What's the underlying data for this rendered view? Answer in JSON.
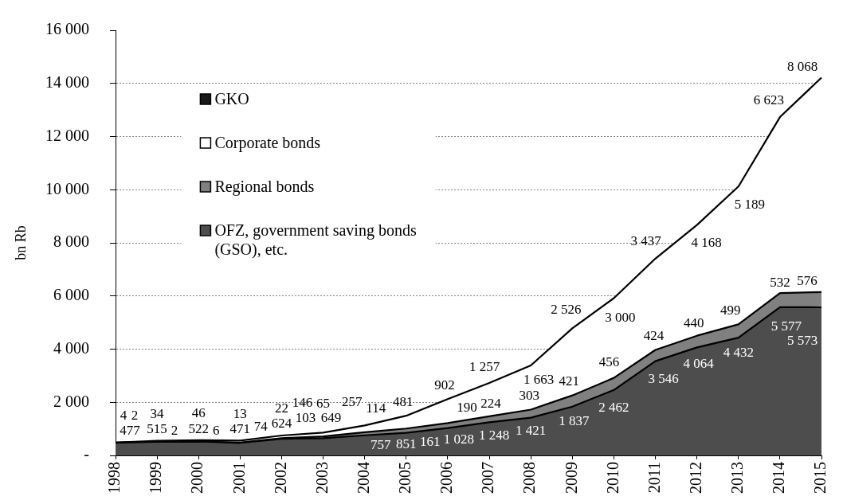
{
  "chart_data": {
    "type": "area",
    "stacked": true,
    "ylabel": "bn Rb",
    "categories": [
      "1998",
      "1999",
      "2000",
      "2001",
      "2002",
      "2003",
      "2004",
      "2005",
      "2006",
      "2007",
      "2008",
      "2009",
      "2010",
      "2011",
      "2012",
      "2013",
      "2014",
      "2015"
    ],
    "ylim": [
      0,
      16000
    ],
    "yticks": [
      {
        "value": 0,
        "label": "-"
      },
      {
        "value": 2000,
        "label": "2 000"
      },
      {
        "value": 4000,
        "label": "4 000"
      },
      {
        "value": 6000,
        "label": "6 000"
      },
      {
        "value": 8000,
        "label": "8 000"
      },
      {
        "value": 10000,
        "label": "10 000"
      },
      {
        "value": 12000,
        "label": "12 000"
      },
      {
        "value": 14000,
        "label": "14 000"
      },
      {
        "value": 16000,
        "label": "16 000"
      }
    ],
    "grid": "y",
    "legend": "top left",
    "series": [
      {
        "name": "OFZ, government saving bonds (GSO), etc.",
        "color": "#4d4d4d",
        "values": [
          477,
          515,
          522,
          471,
          624,
          649,
          757,
          851,
          1028,
          1248,
          1421,
          1837,
          2462,
          3546,
          4064,
          4432,
          5577,
          5573
        ],
        "value_labels": [
          "477",
          "515",
          "522",
          "471",
          "624",
          "649",
          "757",
          "851",
          "1 028",
          "1 248",
          "1 421",
          "1 837",
          "2 462",
          "3 546",
          "4 064",
          "4 432",
          "5 577",
          "5 573"
        ]
      },
      {
        "name": "Regional bonds",
        "color": "#808080",
        "values": [
          4,
          2,
          6,
          13,
          22,
          65,
          114,
          161,
          190,
          224,
          303,
          421,
          456,
          424,
          440,
          499,
          532,
          576
        ],
        "value_labels": [
          "4",
          "2",
          "6",
          "13",
          "22",
          "65",
          "114",
          "161",
          "190",
          "224",
          "303",
          "421",
          "456",
          "424",
          "440",
          "499",
          "532",
          "576"
        ]
      },
      {
        "name": "Corporate bonds",
        "color": "#ffffff",
        "values": [
          2,
          34,
          46,
          74,
          103,
          146,
          257,
          481,
          902,
          1257,
          1663,
          2526,
          3000,
          3437,
          4168,
          5189,
          6623,
          8068
        ],
        "value_labels": [
          "2",
          "34",
          "46",
          "74",
          "103",
          "146",
          "257",
          "481",
          "902",
          "1 257",
          "1 663",
          "2 526",
          "3 000",
          "3 437",
          "4 168",
          "5 189",
          "6 623",
          "8 068"
        ]
      },
      {
        "name": "GKO",
        "color": "#1a1a1a",
        "values": [
          null,
          null,
          null,
          null,
          null,
          null,
          null,
          null,
          null,
          null,
          null,
          null,
          null,
          null,
          null,
          null,
          null,
          null
        ]
      }
    ]
  }
}
